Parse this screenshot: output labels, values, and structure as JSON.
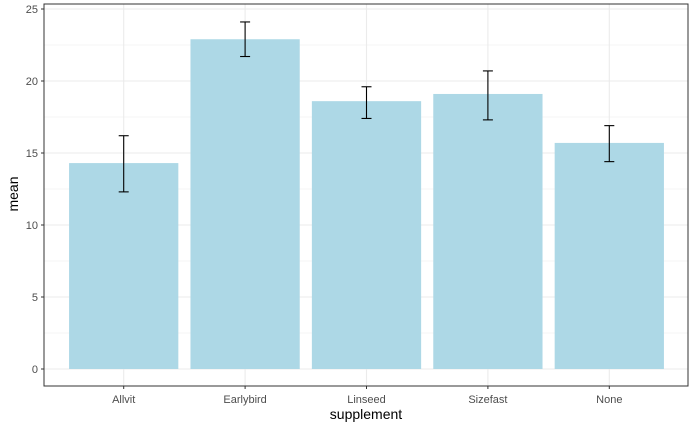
{
  "chart_data": {
    "type": "bar",
    "xlabel": "supplement",
    "ylabel": "mean",
    "categories": [
      "Allvit",
      "Earlybird",
      "Linseed",
      "Sizefast",
      "None"
    ],
    "values": [
      14.3,
      22.9,
      18.6,
      19.1,
      15.7
    ],
    "error_low": [
      12.3,
      21.7,
      17.4,
      17.3,
      14.4
    ],
    "error_high": [
      16.2,
      24.1,
      19.6,
      20.7,
      16.9
    ],
    "ylim": [
      0,
      25
    ],
    "yticks": [
      "0",
      "5",
      "10",
      "15",
      "20",
      "25"
    ],
    "bar_color": "#add8e6",
    "error_bar_color": "#000000",
    "grid": true,
    "grid_color": "#ebebeb",
    "panel_border_color": "#333333"
  }
}
